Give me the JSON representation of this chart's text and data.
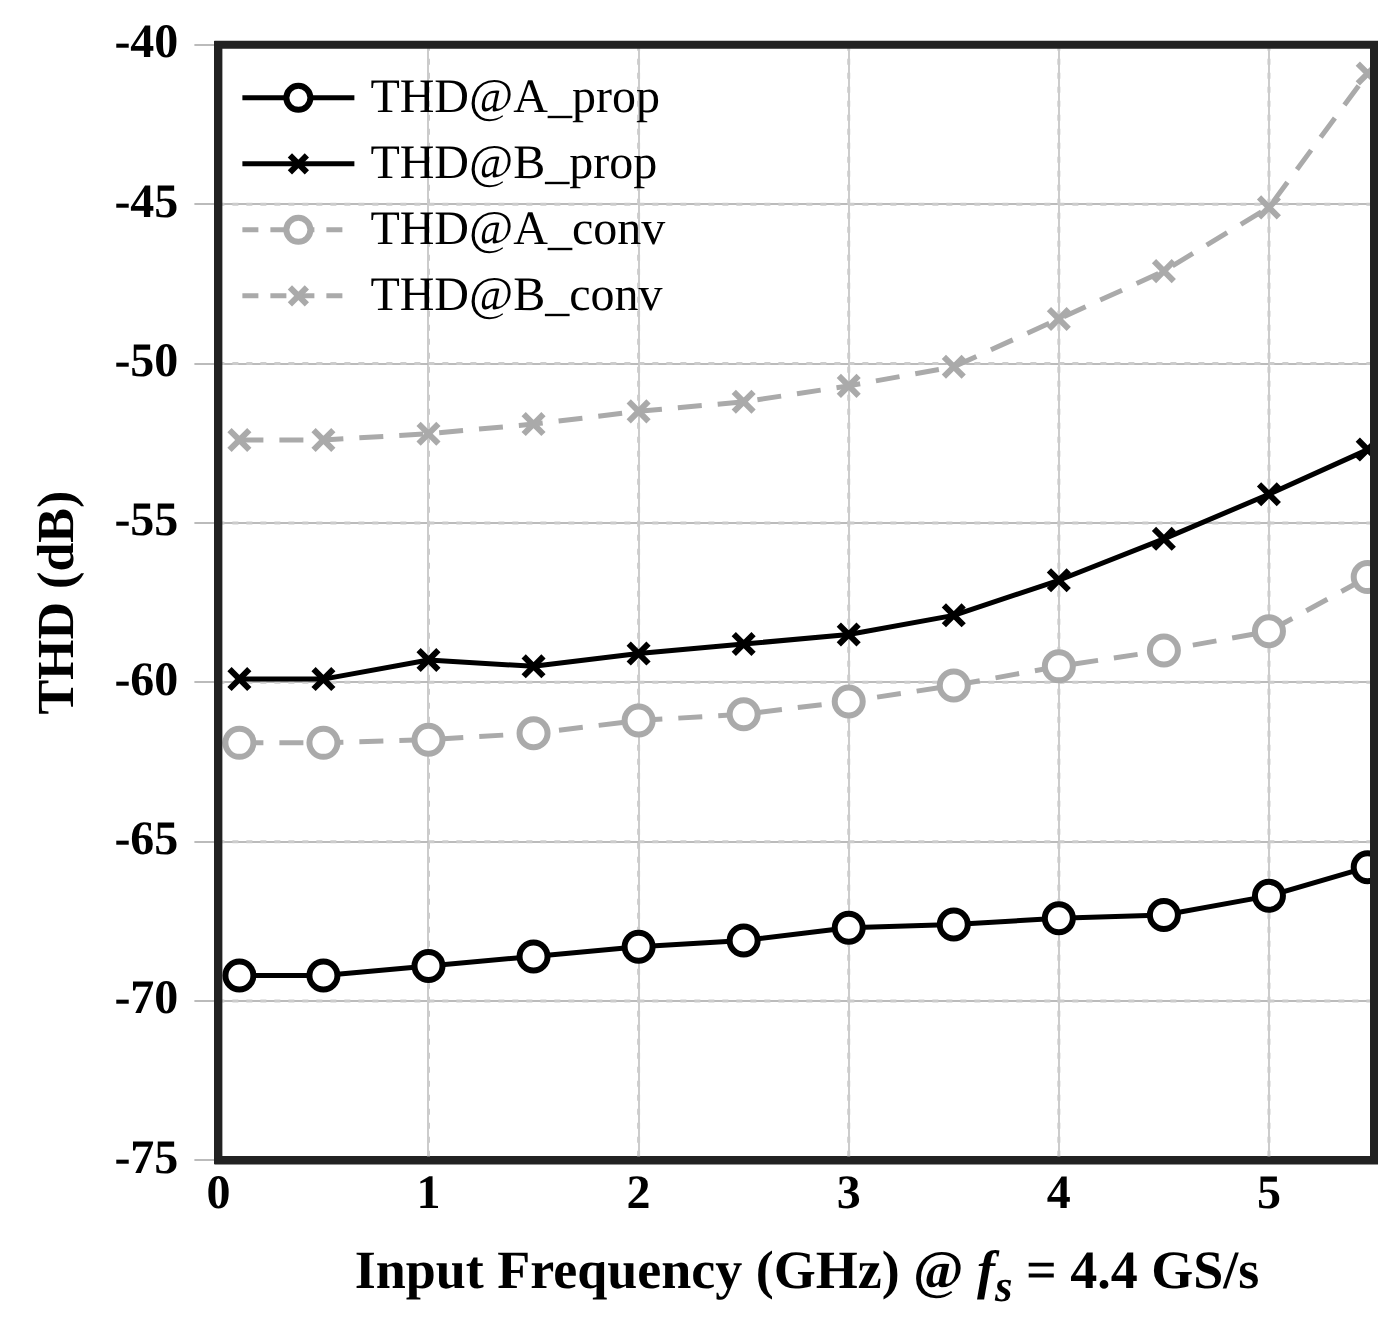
{
  "chart_data": {
    "type": "line",
    "xlabel": "Input Frequency (GHz) @ f$_{s}$ = 4.4 GS/s",
    "ylabel": "THD (dB)",
    "x": [
      0.1,
      0.5,
      1,
      1.5,
      2,
      2.5,
      3,
      3.5,
      4,
      4.5,
      5,
      5.47
    ],
    "xlim": [
      0,
      5.5
    ],
    "xticks": [
      0,
      1,
      2,
      3,
      4,
      5
    ],
    "ylim": [
      -75,
      -40
    ],
    "yticks": [
      -75,
      -70,
      -65,
      -60,
      -55,
      -50,
      -45,
      -40
    ],
    "grid": true,
    "legend": "top left",
    "series": [
      {
        "name": "THD@A_prop",
        "color": "#000000",
        "marker": "circle",
        "line_style": "solid",
        "values": [
          -69.2,
          -69.2,
          -68.9,
          -68.6,
          -68.3,
          -68.1,
          -67.7,
          -67.6,
          -67.4,
          -67.3,
          -66.7,
          -65.8
        ]
      },
      {
        "name": "THD@B_prop",
        "color": "#000000",
        "marker": "cross",
        "line_style": "solid",
        "values": [
          -59.9,
          -59.9,
          -59.3,
          -59.5,
          -59.1,
          -58.8,
          -58.5,
          -57.9,
          -56.8,
          -55.5,
          -54.1,
          -52.7
        ]
      },
      {
        "name": "THD@A_conv",
        "color": "#aaaaaa",
        "marker": "circle",
        "line_style": "dashed",
        "values": [
          -61.9,
          -61.9,
          -61.8,
          -61.6,
          -61.2,
          -61.0,
          -60.6,
          -60.1,
          -59.5,
          -59.0,
          -58.4,
          -56.7
        ]
      },
      {
        "name": "THD@B_conv",
        "color": "#aaaaaa",
        "marker": "cross",
        "line_style": "dashed",
        "values": [
          -52.4,
          -52.4,
          -52.2,
          -51.9,
          -51.5,
          -51.2,
          -50.7,
          -50.1,
          -48.6,
          -47.1,
          -45.1,
          -40.9
        ]
      }
    ]
  }
}
